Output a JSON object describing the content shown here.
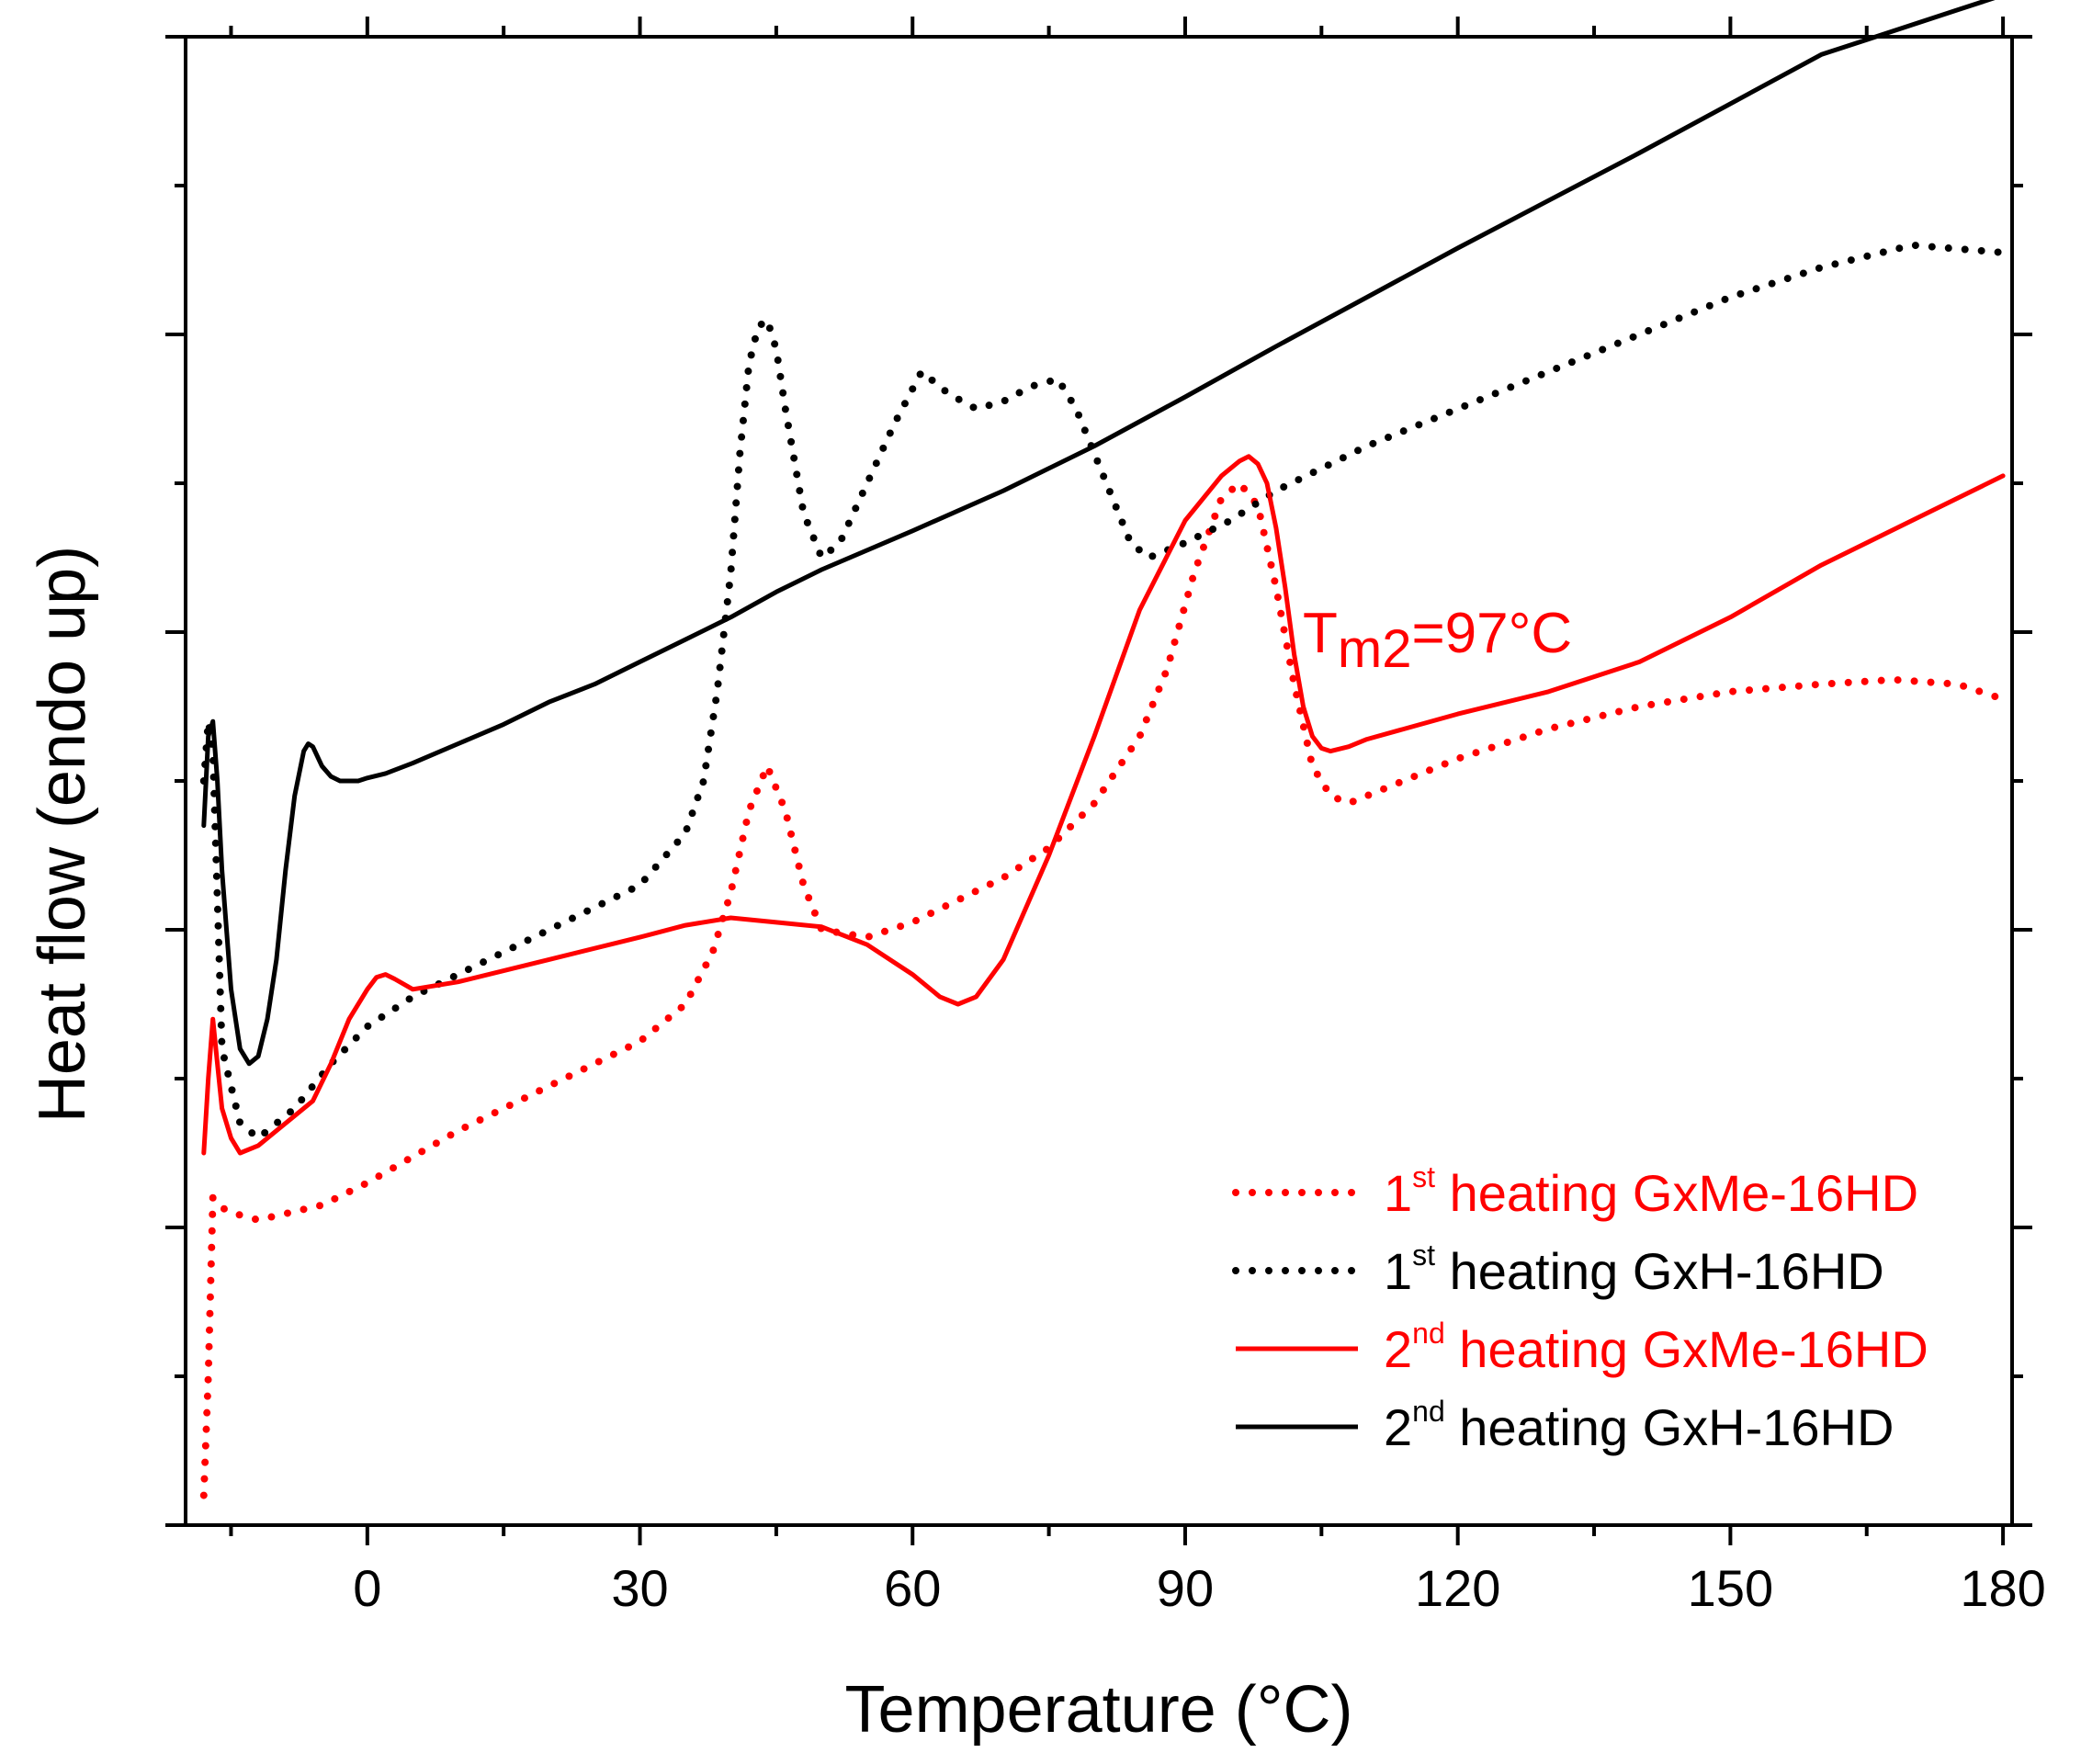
{
  "chart_data": {
    "type": "line",
    "title": "",
    "xlabel": "Temperature (°C)",
    "ylabel": "Heat flow (endo up)",
    "xlim": [
      -20,
      181
    ],
    "ylim": [
      0,
      100
    ],
    "xticks": [
      0,
      30,
      60,
      90,
      120,
      150,
      180
    ],
    "xtick_labels": [
      "0",
      "30",
      "60",
      "90",
      "120",
      "150",
      "180"
    ],
    "yticks": [
      0,
      20,
      40,
      60,
      80,
      100
    ],
    "grid": false,
    "legend_position": "bottom-right",
    "annotation": {
      "base": "T",
      "sub": "m2",
      "rest": "=97°C",
      "x": 97,
      "color": "#ff0000"
    },
    "colors": {
      "red": "#ff0000",
      "black": "#000000",
      "axis": "#000000"
    },
    "series": [
      {
        "name": "1st heating GxMe-16HD",
        "legend": {
          "num": "1",
          "sup": "st",
          "text": " heating GxMe-16HD"
        },
        "color": "#ff0000",
        "dash": "dotted",
        "x": [
          -18,
          -17.5,
          -17,
          -16.5,
          -15,
          -12,
          -5,
          0,
          10,
          20,
          30,
          35,
          38,
          40,
          42,
          44,
          46,
          48,
          50,
          55,
          60,
          65,
          70,
          75,
          80,
          85,
          88,
          91,
          94,
          96,
          98,
          100,
          102,
          104,
          106,
          108,
          110,
          120,
          130,
          140,
          150,
          160,
          168,
          175,
          180
        ],
        "y": [
          2,
          10,
          22,
          21.5,
          21,
          20.5,
          21.5,
          23,
          26.5,
          29.5,
          32.5,
          35,
          38.5,
          42.5,
          48,
          51,
          48,
          43,
          40,
          39.5,
          40.5,
          42,
          43.5,
          45.5,
          48.5,
          53,
          57.5,
          64,
          69,
          70,
          68.5,
          63,
          56.5,
          51,
          49,
          48.5,
          49,
          51.5,
          53.5,
          55,
          56,
          56.5,
          56.8,
          56.5,
          55.5
        ]
      },
      {
        "name": "1st heating GxH-16HD",
        "legend": {
          "num": "1",
          "sup": "st",
          "text": " heating GxH-16HD"
        },
        "color": "#000000",
        "dash": "dotted",
        "x": [
          -18,
          -17.5,
          -17,
          -16,
          -14,
          -12,
          -8,
          -4,
          0,
          5,
          10,
          20,
          30,
          35,
          37,
          38.5,
          40,
          41,
          42,
          43,
          44,
          45,
          46,
          48,
          50,
          52,
          55,
          58,
          61,
          64,
          67,
          70,
          73,
          76,
          78,
          80,
          82,
          84,
          86,
          88,
          90,
          95,
          100,
          110,
          120,
          130,
          140,
          150,
          160,
          170,
          180
        ],
        "y": [
          50,
          54,
          52,
          32,
          27,
          26,
          28,
          31,
          33.5,
          35.5,
          37,
          40,
          43,
          46.5,
          50,
          56,
          64,
          72,
          78,
          80.5,
          81,
          79,
          75,
          68,
          65,
          66,
          70,
          74,
          77.5,
          76,
          75,
          75.5,
          76.5,
          77,
          75,
          72,
          69,
          66,
          65,
          65.5,
          66,
          67.5,
          69.5,
          72.5,
          75,
          77.5,
          80,
          82.5,
          84.5,
          86,
          85.5
        ]
      },
      {
        "name": "2nd heating GxMe-16HD",
        "legend": {
          "num": "2",
          "sup": "nd",
          "text": " heating GxMe-16HD"
        },
        "color": "#ff0000",
        "dash": "solid",
        "x": [
          -18,
          -17.5,
          -17,
          -16.5,
          -16,
          -15,
          -14,
          -12,
          -10,
          -6,
          -4,
          -2,
          0,
          1,
          2,
          3,
          5,
          10,
          20,
          30,
          35,
          40,
          45,
          50,
          55,
          60,
          63,
          65,
          67,
          70,
          75,
          80,
          85,
          90,
          94,
          96,
          97,
          98,
          99,
          100,
          101,
          102,
          103,
          104,
          105,
          106,
          108,
          110,
          120,
          130,
          140,
          150,
          160,
          170,
          180
        ],
        "y": [
          25,
          30,
          34,
          31,
          28,
          26,
          25,
          25.5,
          26.5,
          28.5,
          31,
          34,
          36,
          36.8,
          37,
          36.7,
          36,
          36.5,
          38,
          39.5,
          40.3,
          40.8,
          40.5,
          40.2,
          39,
          37,
          35.5,
          35,
          35.5,
          38,
          45,
          53,
          61.5,
          67.5,
          70.5,
          71.5,
          71.8,
          71.3,
          70,
          67,
          63,
          58.5,
          55,
          53,
          52.2,
          52,
          52.3,
          52.8,
          54.5,
          56,
          58,
          61,
          64.5,
          67.5,
          70.5
        ]
      },
      {
        "name": "2nd heating GxH-16HD",
        "legend": {
          "num": "2",
          "sup": "nd",
          "text": " heating GxH-16HD"
        },
        "color": "#000000",
        "dash": "solid",
        "x": [
          -18,
          -17.5,
          -17,
          -16.5,
          -16,
          -15,
          -14,
          -13,
          -12,
          -11,
          -10,
          -9,
          -8,
          -7,
          -6.5,
          -6,
          -5,
          -4,
          -3,
          -2,
          -1,
          0,
          2,
          5,
          10,
          15,
          20,
          25,
          30,
          35,
          40,
          45,
          50,
          60,
          70,
          80,
          90,
          100,
          110,
          120,
          130,
          140,
          150,
          160,
          165,
          170,
          175,
          180
        ],
        "y": [
          47,
          53,
          54,
          50,
          44,
          36,
          32,
          31,
          31.5,
          34,
          38,
          44,
          49,
          52,
          52.5,
          52.3,
          51,
          50.3,
          50,
          50,
          50,
          50.2,
          50.5,
          51.2,
          52.5,
          53.8,
          55.3,
          56.5,
          58,
          59.5,
          61,
          62.7,
          64.2,
          66.8,
          69.5,
          72.5,
          75.8,
          79.2,
          82.5,
          85.8,
          89,
          92.2,
          95.5,
          98.8,
          99.8,
          100.8,
          101.8,
          102.8
        ]
      }
    ]
  }
}
